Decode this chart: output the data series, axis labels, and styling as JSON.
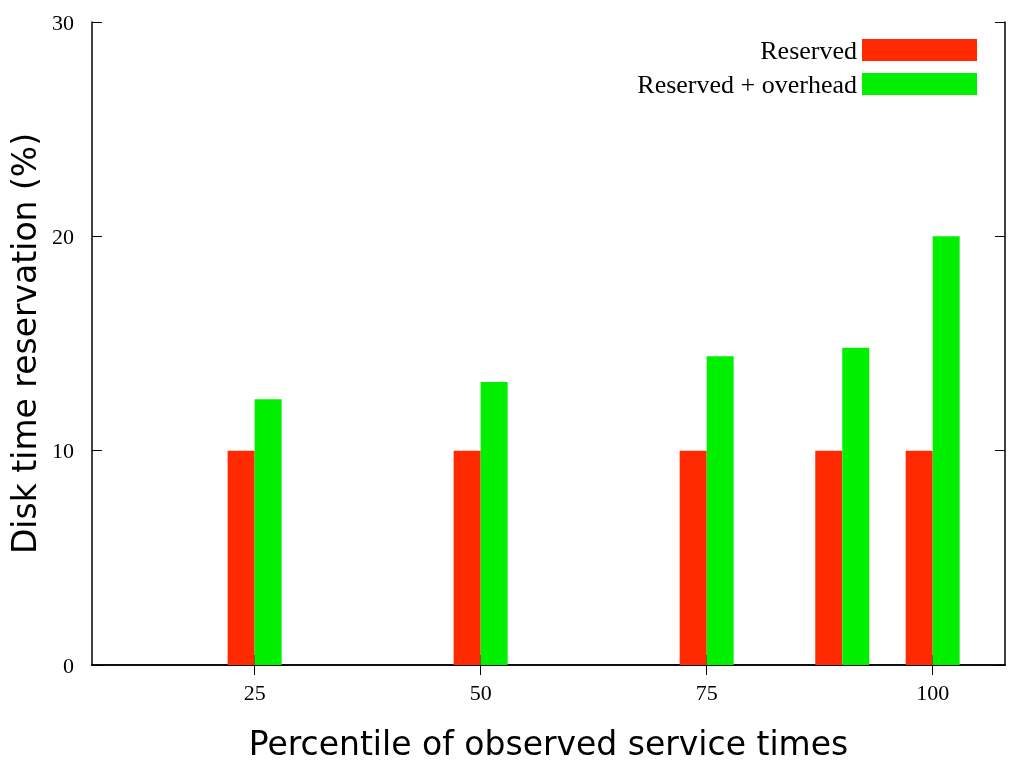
{
  "chart_data": {
    "type": "bar",
    "xlabel": "Percentile of observed service times",
    "ylabel": "Disk time reservation (%)",
    "x": [
      25,
      50,
      75,
      90,
      100
    ],
    "series": [
      {
        "name": "Reserved",
        "color": "#ff2a00",
        "values": [
          10,
          10,
          10,
          10,
          10
        ]
      },
      {
        "name": "Reserved + overhead",
        "color": "#00f000",
        "values": [
          12.4,
          13.2,
          14.4,
          14.8,
          20.0
        ]
      }
    ],
    "xlim": [
      7,
      108
    ],
    "xticks": [
      25,
      50,
      75,
      100
    ],
    "ylim": [
      0,
      30
    ],
    "yticks": [
      0,
      10,
      20,
      30
    ],
    "grid": false,
    "legend": "top right"
  }
}
